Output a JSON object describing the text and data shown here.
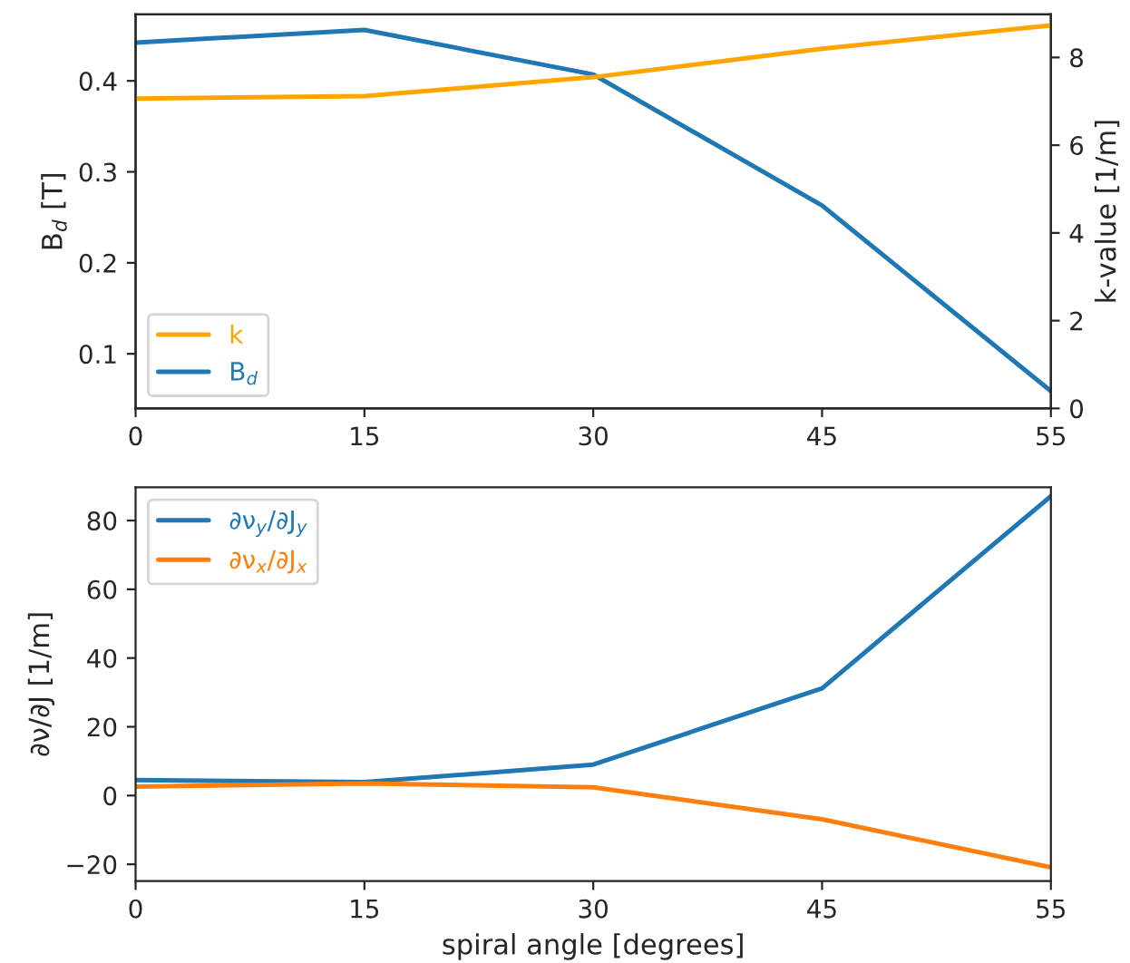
{
  "chart_data": [
    {
      "type": "line",
      "categories": [
        "0",
        "15",
        "30",
        "45",
        "55"
      ],
      "ylabel": "B$_{d}$ [T]",
      "y2label": "k-value [1/m]",
      "ylim": [
        0.04,
        0.473
      ],
      "yticks": [
        0.1,
        0.2,
        0.3,
        0.4
      ],
      "y2lim": [
        0,
        8.98
      ],
      "y2ticks": [
        0,
        2,
        4,
        6,
        8
      ],
      "legend": "bottom left",
      "grid": false,
      "series": [
        {
          "name": "k",
          "color": "#ffa500",
          "axis": "y2",
          "values": [
            7.06,
            7.12,
            7.55,
            8.2,
            8.73
          ]
        },
        {
          "name": "B$_{d}$",
          "color": "#1f77b4",
          "values": [
            0.442,
            0.456,
            0.407,
            0.263,
            0.059
          ]
        }
      ]
    },
    {
      "type": "line",
      "categories": [
        "0",
        "15",
        "30",
        "45",
        "55"
      ],
      "xlabel": "spiral angle [degrees]",
      "ylabel": "∂ν/∂J [1/m]",
      "ylim": [
        -24.9,
        89.7
      ],
      "yticks": [
        {
          "value": -20,
          "label": "−20"
        },
        0,
        20,
        40,
        60,
        80
      ],
      "legend": "top left",
      "grid": false,
      "series": [
        {
          "name": "∂ν$_{y}$/∂J$_{y}$",
          "color": "#1f77b4",
          "values": [
            4.5,
            3.9,
            9.0,
            31.2,
            87.1
          ]
        },
        {
          "name": "∂ν$_{x}$/∂J$_{x}$",
          "color": "#ff7f0e",
          "values": [
            2.6,
            3.5,
            2.4,
            -6.9,
            -20.9
          ]
        }
      ]
    }
  ]
}
